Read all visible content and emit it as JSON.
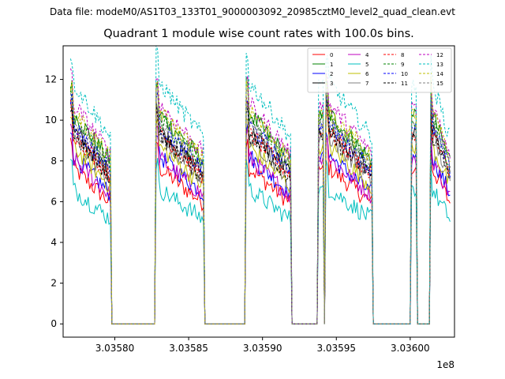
{
  "suptitle": "Data file: modeM0/AS1T03_133T01_9000003092_20985cztM0_level2_quad_clean.evt",
  "chart_data": {
    "type": "line",
    "title": "Quadrant 1 module wise count rates with 100.0s bins.",
    "xlabel": "",
    "ylabel": "",
    "x_offset_label": "1e8",
    "xlim": [
      3.035765,
      3.03603
    ],
    "ylim": [
      -0.65,
      13.65
    ],
    "xticks": [
      3.0358,
      3.03585,
      3.0359,
      3.03595,
      3.036
    ],
    "xtick_labels": [
      "3.03580",
      "3.03585",
      "3.03590",
      "3.03595",
      "3.03600"
    ],
    "yticks": [
      0,
      2,
      4,
      6,
      8,
      10,
      12
    ],
    "ytick_labels": [
      "0",
      "2",
      "4",
      "6",
      "8",
      "10",
      "12"
    ],
    "grid": false,
    "legend_position": "top-right",
    "legend_columns": 4,
    "data_segments": [
      {
        "x_start": 3.03577,
        "x_end": 3.035797
      },
      {
        "x_start": 3.035828,
        "x_end": 3.03586
      },
      {
        "x_start": 3.035889,
        "x_end": 3.035919
      },
      {
        "x_start": 3.035938,
        "x_end": 3.035941
      },
      {
        "x_start": 3.035943,
        "x_end": 3.035974
      },
      {
        "x_start": 3.036001,
        "x_end": 3.036004
      },
      {
        "x_start": 3.036014,
        "x_end": 3.036027
      }
    ],
    "series": [
      {
        "name": "0",
        "color": "#ff0000",
        "dash": "solid",
        "level": 6.6
      },
      {
        "name": "1",
        "color": "#008000",
        "dash": "solid",
        "level": 8.9
      },
      {
        "name": "2",
        "color": "#0000ff",
        "dash": "solid",
        "level": 7.1
      },
      {
        "name": "3",
        "color": "#000000",
        "dash": "solid",
        "level": 8.2
      },
      {
        "name": "4",
        "color": "#bf00bf",
        "dash": "solid",
        "level": 7.0
      },
      {
        "name": "5",
        "color": "#00bfbf",
        "dash": "solid",
        "level": 5.7
      },
      {
        "name": "6",
        "color": "#bfbf00",
        "dash": "solid",
        "level": 7.5
      },
      {
        "name": "7",
        "color": "#808080",
        "dash": "solid",
        "level": 7.9
      },
      {
        "name": "8",
        "color": "#ff0000",
        "dash": "dashed",
        "level": 8.1
      },
      {
        "name": "9",
        "color": "#008000",
        "dash": "dashed",
        "level": 8.7
      },
      {
        "name": "10",
        "color": "#0000ff",
        "dash": "dashed",
        "level": 8.4
      },
      {
        "name": "11",
        "color": "#000000",
        "dash": "dashed",
        "level": 8.0
      },
      {
        "name": "12",
        "color": "#bf00bf",
        "dash": "dashed",
        "level": 9.3
      },
      {
        "name": "13",
        "color": "#00bfbf",
        "dash": "dashed",
        "level": 10.2
      },
      {
        "name": "14",
        "color": "#bfbf00",
        "dash": "dashed",
        "level": 9.0
      },
      {
        "name": "15",
        "color": "#808080",
        "dash": "dashed",
        "level": 8.5
      }
    ]
  }
}
